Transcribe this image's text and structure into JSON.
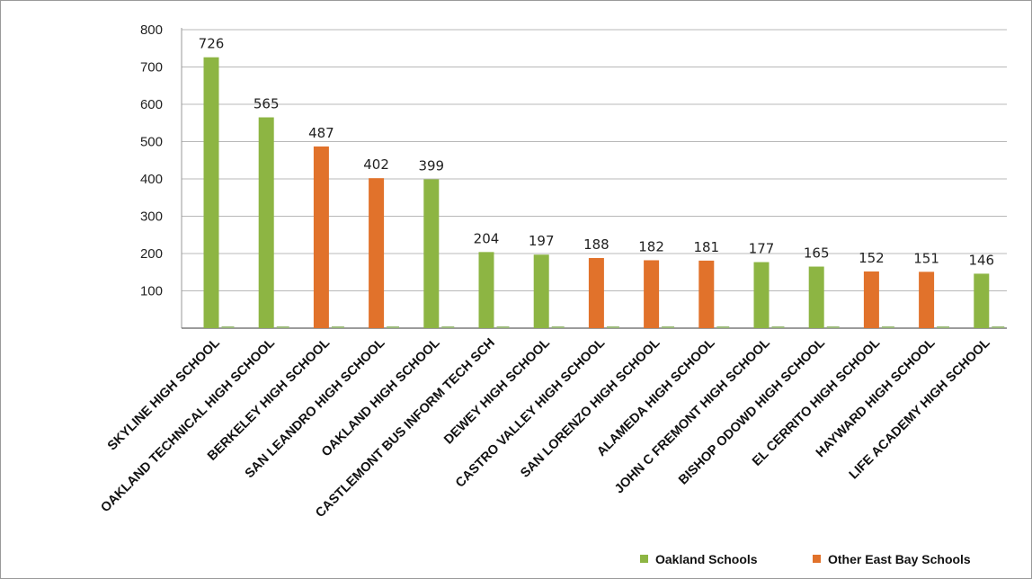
{
  "chart_data": {
    "type": "bar",
    "title": "",
    "xlabel": "",
    "ylabel": "",
    "ylim": [
      0,
      800
    ],
    "yticks": [
      100,
      200,
      300,
      400,
      500,
      600,
      700,
      800
    ],
    "grid": true,
    "legend_position": "bottom-right",
    "categories": [
      "SKYLINE HIGH SCHOOL",
      "OAKLAND TECHNICAL HIGH SCHOOL",
      "BERKELEY HIGH SCHOOL",
      "SAN LEANDRO HIGH SCHOOL",
      "OAKLAND HIGH SCHOOL",
      "CASTLEMONT BUS INFORM TECH SCH",
      "DEWEY HIGH SCHOOL",
      "CASTRO VALLEY HIGH SCHOOL",
      "SAN LORENZO HIGH SCHOOL",
      "ALAMEDA HIGH SCHOOL",
      "JOHN C FREMONT HIGH SCHOOL",
      "BISHOP ODOWD HIGH SCHOOL",
      "EL CERRITO HIGH SCHOOL",
      "HAYWARD HIGH SCHOOL",
      "LIFE ACADEMY HIGH SCHOOL"
    ],
    "values": [
      726,
      565,
      487,
      402,
      399,
      204,
      197,
      188,
      182,
      181,
      177,
      165,
      152,
      151,
      146
    ],
    "groups": [
      "Oakland Schools",
      "Oakland Schools",
      "Other East Bay Schools",
      "Other East Bay Schools",
      "Oakland Schools",
      "Oakland Schools",
      "Oakland Schools",
      "Other East Bay Schools",
      "Other East Bay Schools",
      "Other East Bay Schools",
      "Oakland Schools",
      "Oakland Schools",
      "Other East Bay Schools",
      "Other East Bay Schools",
      "Oakland Schools"
    ],
    "series": [
      {
        "name": "Oakland Schools",
        "color": "#8db543"
      },
      {
        "name": "Other East Bay Schools",
        "color": "#e1722b"
      }
    ]
  }
}
